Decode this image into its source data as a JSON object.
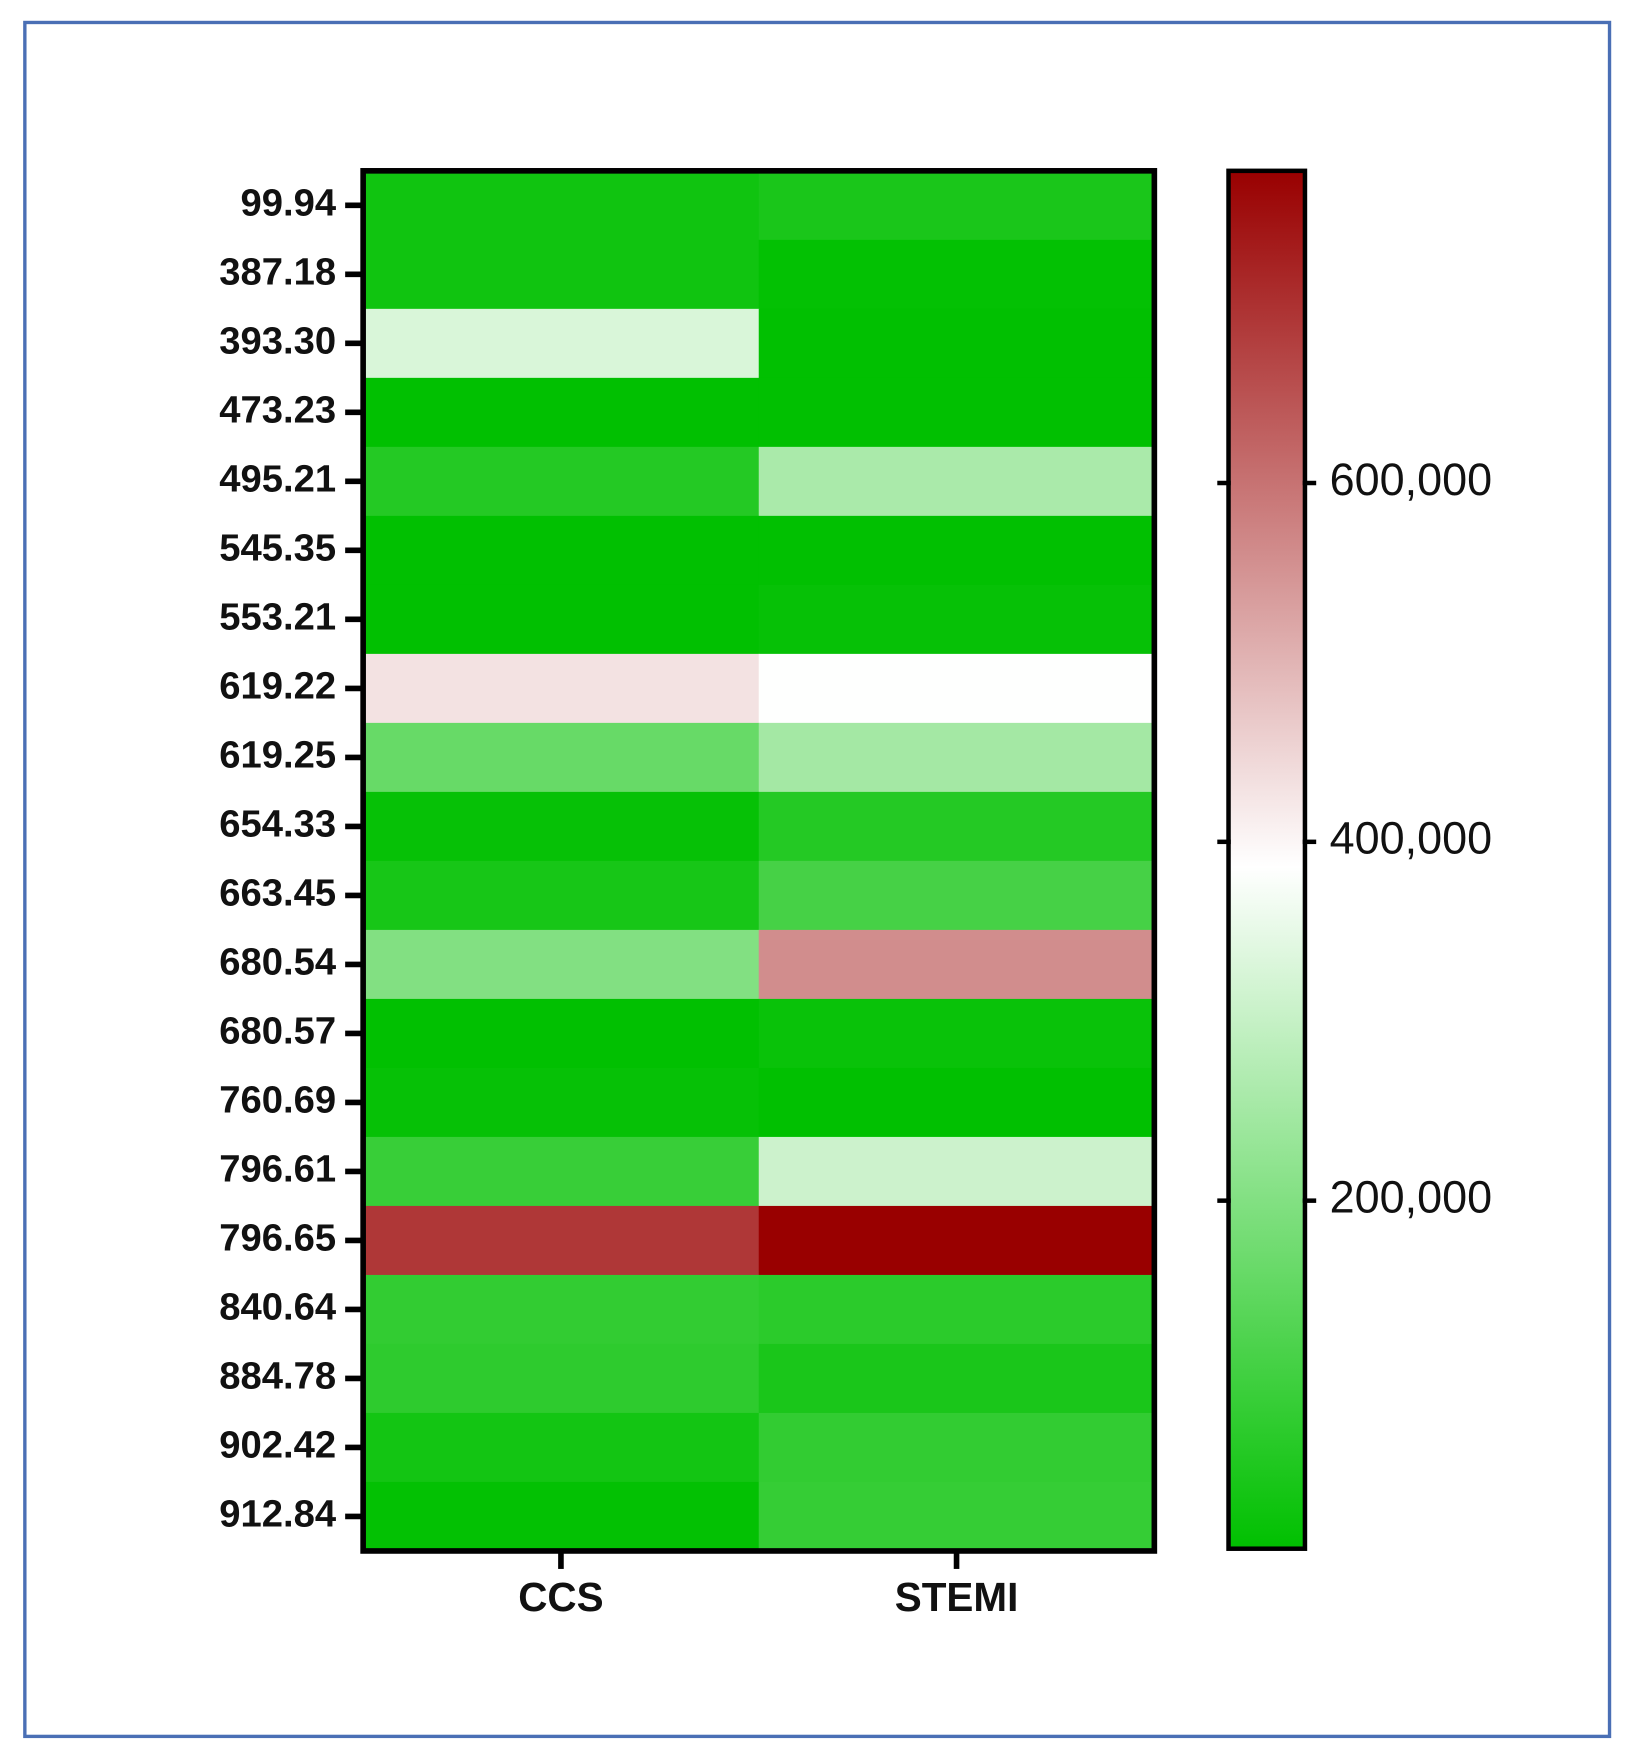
{
  "chart_data": {
    "type": "heatmap",
    "columns": [
      "CCS",
      "STEMI"
    ],
    "rows": [
      "99.94",
      "387.18",
      "393.30",
      "473.23",
      "495.21",
      "545.35",
      "553.21",
      "619.22",
      "619.25",
      "654.33",
      "663.45",
      "680.54",
      "680.57",
      "760.69",
      "796.61",
      "796.65",
      "840.64",
      "884.78",
      "902.42",
      "912.84"
    ],
    "values": [
      [
        30000,
        45000
      ],
      [
        30000,
        10000
      ],
      [
        330000,
        8000
      ],
      [
        8000,
        8000
      ],
      [
        60000,
        260000
      ],
      [
        8000,
        8000
      ],
      [
        8000,
        15000
      ],
      [
        430000,
        385000
      ],
      [
        160000,
        250000
      ],
      [
        15000,
        60000
      ],
      [
        40000,
        110000
      ],
      [
        200000,
        560000
      ],
      [
        8000,
        20000
      ],
      [
        15000,
        8000
      ],
      [
        90000,
        310000
      ],
      [
        690000,
        774000
      ],
      [
        80000,
        70000
      ],
      [
        75000,
        45000
      ],
      [
        35000,
        80000
      ],
      [
        10000,
        85000
      ]
    ],
    "zlim": [
      6000,
      774000
    ],
    "zticks": [
      {
        "value": 200000,
        "label": "200,000"
      },
      {
        "value": 400000,
        "label": "400,000"
      },
      {
        "value": 600000,
        "label": "600,000"
      }
    ],
    "colormap": [
      {
        "value": 6000,
        "color": "#00c000"
      },
      {
        "value": 386000,
        "color": "#ffffff"
      },
      {
        "value": 774000,
        "color": "#990000"
      }
    ]
  }
}
